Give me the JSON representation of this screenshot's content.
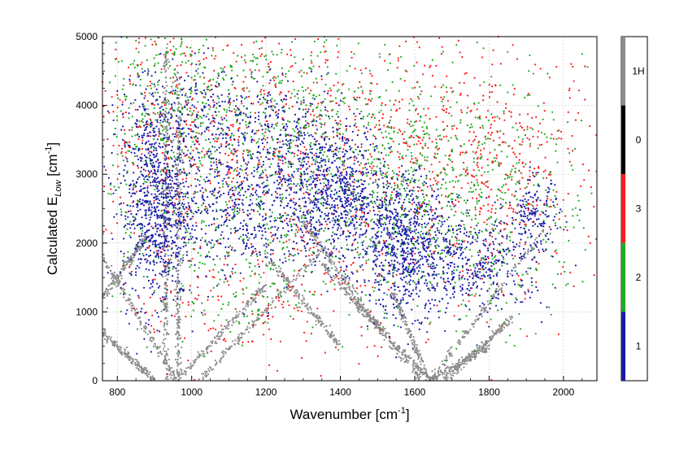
{
  "chart_data": {
    "type": "scatter",
    "xlabel": {
      "main": "Wavenumber [cm",
      "sup": "-1",
      "close": "]"
    },
    "ylabel": {
      "main": "Calculated E",
      "sub": "Low",
      "mid": " [cm",
      "sup": "-1",
      "close": "]"
    },
    "xlim": [
      760,
      2090
    ],
    "ylim": [
      0,
      5000
    ],
    "xticks": [
      800,
      1000,
      1200,
      1400,
      1600,
      1800,
      2000
    ],
    "yticks": [
      0,
      1000,
      2000,
      3000,
      4000,
      5000
    ],
    "grid": true,
    "colorbar": [
      {
        "label": "1H",
        "color": "#8c8c8c"
      },
      {
        "label": "0",
        "color": "#000000"
      },
      {
        "label": "3",
        "color": "#ff1a1a"
      },
      {
        "label": "2",
        "color": "#22aa22"
      },
      {
        "label": "1",
        "color": "#1a1aaa"
      }
    ],
    "series": [
      {
        "name": "1",
        "color": "#1a1aaa",
        "clusters": [
          {
            "x": 900,
            "y": 2500,
            "sx": 45,
            "sy": 700,
            "n": 700
          },
          {
            "x": 1130,
            "y": 2500,
            "sx": 120,
            "sy": 500,
            "n": 600
          },
          {
            "x": 1390,
            "y": 2700,
            "sx": 60,
            "sy": 500,
            "n": 650
          },
          {
            "x": 1570,
            "y": 2000,
            "sx": 60,
            "sy": 500,
            "n": 700
          },
          {
            "x": 1760,
            "y": 1700,
            "sx": 100,
            "sy": 350,
            "n": 400
          },
          {
            "x": 1920,
            "y": 2400,
            "sx": 35,
            "sy": 250,
            "n": 150
          },
          {
            "x": 1000,
            "y": 3800,
            "sx": 110,
            "sy": 400,
            "n": 300
          },
          {
            "x": 1250,
            "y": 3500,
            "sx": 80,
            "sy": 400,
            "n": 250
          }
        ]
      },
      {
        "name": "2",
        "color": "#22aa22",
        "clusters": [
          {
            "x": 960,
            "y": 3800,
            "sx": 120,
            "sy": 900,
            "n": 550
          },
          {
            "x": 1280,
            "y": 3700,
            "sx": 120,
            "sy": 900,
            "n": 450
          },
          {
            "x": 1550,
            "y": 2700,
            "sx": 110,
            "sy": 800,
            "n": 450
          },
          {
            "x": 1800,
            "y": 2600,
            "sx": 130,
            "sy": 900,
            "n": 450
          },
          {
            "x": 1100,
            "y": 1600,
            "sx": 150,
            "sy": 600,
            "n": 250
          }
        ]
      },
      {
        "name": "3",
        "color": "#ff1a1a",
        "clusters": [
          {
            "x": 950,
            "y": 3600,
            "sx": 140,
            "sy": 1000,
            "n": 450
          },
          {
            "x": 1300,
            "y": 3500,
            "sx": 150,
            "sy": 900,
            "n": 350
          },
          {
            "x": 1600,
            "y": 3200,
            "sx": 150,
            "sy": 900,
            "n": 350
          },
          {
            "x": 1850,
            "y": 3000,
            "sx": 130,
            "sy": 900,
            "n": 350
          },
          {
            "x": 1200,
            "y": 1200,
            "sx": 200,
            "sy": 600,
            "n": 200
          }
        ]
      },
      {
        "name": "1H",
        "color": "#8c8c8c",
        "curves": [
          {
            "x0": 760,
            "y0": 700,
            "x1": 900,
            "y1": 0
          },
          {
            "x0": 760,
            "y0": 1800,
            "x1": 960,
            "y1": 0
          },
          {
            "x0": 760,
            "y0": 1200,
            "x1": 880,
            "y1": 2100
          },
          {
            "x0": 960,
            "y0": 0,
            "x1": 1200,
            "y1": 1400
          },
          {
            "x0": 1020,
            "y0": 0,
            "x1": 1350,
            "y1": 1900
          },
          {
            "x0": 1200,
            "y0": 1800,
            "x1": 1400,
            "y1": 500
          },
          {
            "x0": 1300,
            "y0": 2300,
            "x1": 1500,
            "y1": 800
          },
          {
            "x0": 1350,
            "y0": 1700,
            "x1": 1620,
            "y1": 0
          },
          {
            "x0": 1450,
            "y0": 1100,
            "x1": 1640,
            "y1": 0
          },
          {
            "x0": 1540,
            "y0": 1300,
            "x1": 1640,
            "y1": 0
          },
          {
            "x0": 1640,
            "y0": 0,
            "x1": 1950,
            "y1": 2200
          },
          {
            "x0": 1680,
            "y0": 0,
            "x1": 1860,
            "y1": 900
          },
          {
            "x0": 1640,
            "y0": 0,
            "x1": 1800,
            "y1": 500
          }
        ],
        "columns": [
          {
            "x": 930,
            "y0": 0,
            "y1": 4900
          },
          {
            "x": 965,
            "y0": 0,
            "y1": 4500
          }
        ]
      }
    ]
  }
}
